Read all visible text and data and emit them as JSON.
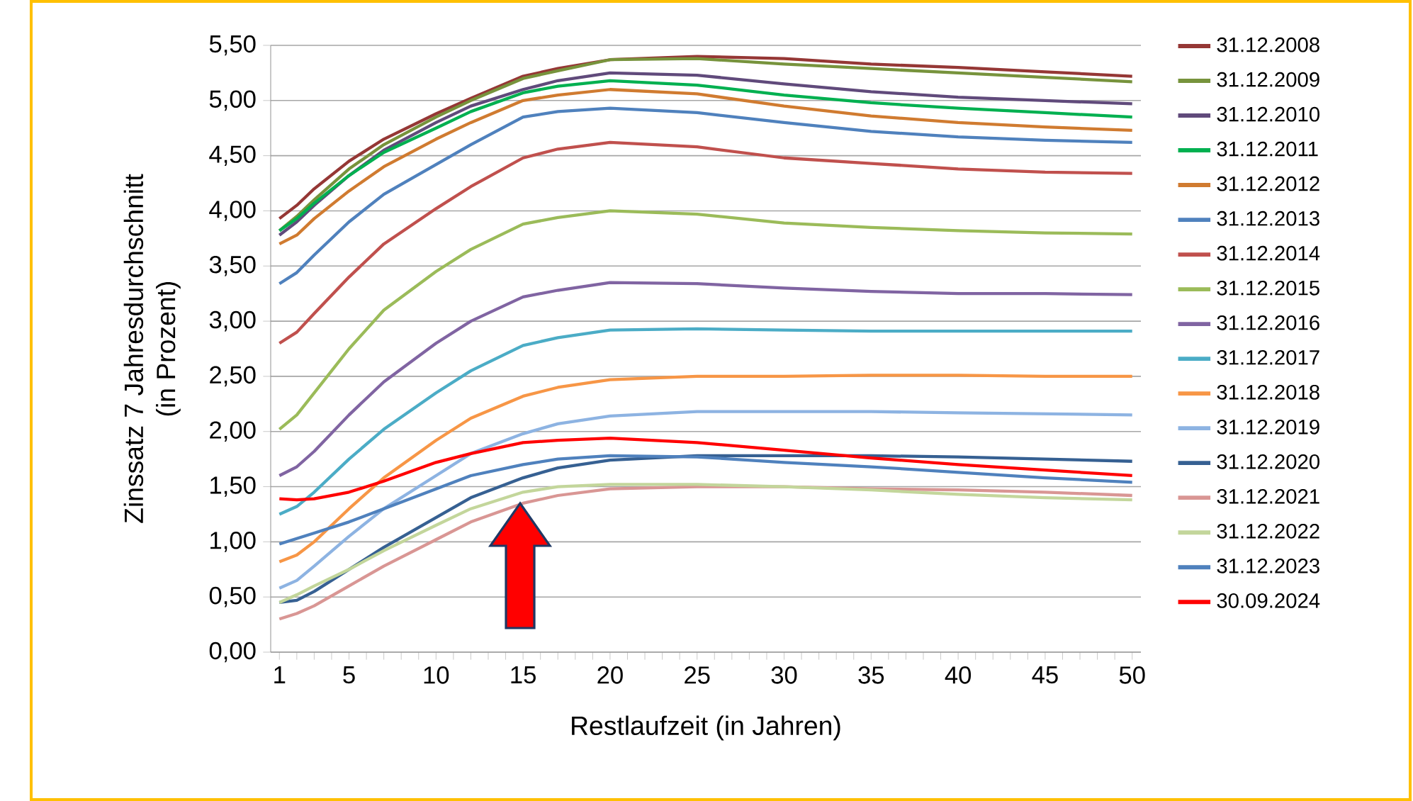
{
  "chart_data": {
    "type": "line",
    "ylabel": "Zinssatz 7 Jahresdurchschnitt\n(in Prozent)",
    "xlabel": "Restlaufzeit (in Jahren)",
    "x": [
      1,
      2,
      3,
      5,
      7,
      10,
      12,
      15,
      17,
      20,
      25,
      30,
      35,
      40,
      45,
      50
    ],
    "xlim": [
      0.5,
      50.5
    ],
    "xticks": [
      1,
      {
        "value": 2,
        "label": null
      },
      {
        "value": 3,
        "label": null
      },
      {
        "value": 4,
        "label": null
      },
      5,
      {
        "value": 6,
        "label": null
      },
      {
        "value": 7,
        "label": null
      },
      {
        "value": 8,
        "label": null
      },
      {
        "value": 9,
        "label": null
      },
      10,
      {
        "value": 11,
        "label": null
      },
      {
        "value": 12,
        "label": null
      },
      {
        "value": 13,
        "label": null
      },
      {
        "value": 14,
        "label": null
      },
      15,
      {
        "value": 16,
        "label": null
      },
      {
        "value": 17,
        "label": null
      },
      {
        "value": 18,
        "label": null
      },
      {
        "value": 19,
        "label": null
      },
      20,
      {
        "value": 21,
        "label": null
      },
      {
        "value": 22,
        "label": null
      },
      {
        "value": 23,
        "label": null
      },
      {
        "value": 24,
        "label": null
      },
      25,
      {
        "value": 26,
        "label": null
      },
      {
        "value": 27,
        "label": null
      },
      {
        "value": 28,
        "label": null
      },
      {
        "value": 29,
        "label": null
      },
      30,
      {
        "value": 31,
        "label": null
      },
      {
        "value": 32,
        "label": null
      },
      {
        "value": 33,
        "label": null
      },
      {
        "value": 34,
        "label": null
      },
      35,
      {
        "value": 36,
        "label": null
      },
      {
        "value": 37,
        "label": null
      },
      {
        "value": 38,
        "label": null
      },
      {
        "value": 39,
        "label": null
      },
      40,
      {
        "value": 41,
        "label": null
      },
      {
        "value": 42,
        "label": null
      },
      {
        "value": 43,
        "label": null
      },
      {
        "value": 44,
        "label": null
      },
      45,
      {
        "value": 46,
        "label": null
      },
      {
        "value": 47,
        "label": null
      },
      {
        "value": 48,
        "label": null
      },
      {
        "value": 49,
        "label": null
      },
      50
    ],
    "ylim": [
      0,
      5.5
    ],
    "yticks": [
      {
        "value": 0,
        "label": "0,00"
      },
      {
        "value": 0.5,
        "label": "0,50"
      },
      {
        "value": 1,
        "label": "1,00"
      },
      {
        "value": 1.5,
        "label": "1,50"
      },
      {
        "value": 2,
        "label": "2,00"
      },
      {
        "value": 2.5,
        "label": "2,50"
      },
      {
        "value": 3,
        "label": "3,00"
      },
      {
        "value": 3.5,
        "label": "3,50"
      },
      {
        "value": 4,
        "label": "4,00"
      },
      {
        "value": 4.5,
        "label": "4,50"
      },
      {
        "value": 5,
        "label": "5,00"
      },
      {
        "value": 5.5,
        "label": "5,50"
      }
    ],
    "grid": "y",
    "legend": "right",
    "marker": "none",
    "line_style": "solid",
    "series": [
      {
        "name": "31.12.2008",
        "color": "#953735",
        "values": [
          3.93,
          4.05,
          4.2,
          4.45,
          4.65,
          4.88,
          5.02,
          5.22,
          5.29,
          5.37,
          5.4,
          5.38,
          5.33,
          5.3,
          5.26,
          5.22
        ]
      },
      {
        "name": "31.12.2009",
        "color": "#77933c",
        "values": [
          3.82,
          3.95,
          4.1,
          4.38,
          4.6,
          4.85,
          5.0,
          5.2,
          5.27,
          5.37,
          5.38,
          5.33,
          5.29,
          5.25,
          5.21,
          5.17
        ]
      },
      {
        "name": "31.12.2010",
        "color": "#604a7b",
        "values": [
          3.78,
          3.9,
          4.05,
          4.32,
          4.55,
          4.8,
          4.95,
          5.1,
          5.18,
          5.25,
          5.23,
          5.15,
          5.08,
          5.03,
          5.0,
          4.97
        ]
      },
      {
        "name": "31.12.2011",
        "color": "#00b050",
        "values": [
          3.82,
          3.93,
          4.07,
          4.32,
          4.53,
          4.75,
          4.9,
          5.07,
          5.13,
          5.18,
          5.14,
          5.05,
          4.98,
          4.93,
          4.89,
          4.85
        ]
      },
      {
        "name": "31.12.2012",
        "color": "#d07b30",
        "values": [
          3.7,
          3.78,
          3.93,
          4.18,
          4.4,
          4.65,
          4.8,
          5.0,
          5.05,
          5.1,
          5.06,
          4.95,
          4.86,
          4.8,
          4.76,
          4.73
        ]
      },
      {
        "name": "31.12.2013",
        "color": "#4f81bd",
        "values": [
          3.34,
          3.44,
          3.6,
          3.9,
          4.15,
          4.42,
          4.6,
          4.85,
          4.9,
          4.93,
          4.89,
          4.8,
          4.72,
          4.67,
          4.64,
          4.62
        ]
      },
      {
        "name": "31.12.2014",
        "color": "#c0504d",
        "values": [
          2.8,
          2.9,
          3.07,
          3.4,
          3.7,
          4.02,
          4.22,
          4.48,
          4.56,
          4.62,
          4.58,
          4.48,
          4.43,
          4.38,
          4.35,
          4.34
        ]
      },
      {
        "name": "31.12.2015",
        "color": "#9bbb59",
        "values": [
          2.02,
          2.15,
          2.35,
          2.75,
          3.1,
          3.45,
          3.65,
          3.88,
          3.94,
          4.0,
          3.97,
          3.89,
          3.85,
          3.82,
          3.8,
          3.79
        ]
      },
      {
        "name": "31.12.2016",
        "color": "#8064a2",
        "values": [
          1.6,
          1.68,
          1.82,
          2.15,
          2.45,
          2.8,
          3.0,
          3.22,
          3.28,
          3.35,
          3.34,
          3.3,
          3.27,
          3.25,
          3.25,
          3.24
        ]
      },
      {
        "name": "31.12.2017",
        "color": "#4bacc6",
        "values": [
          1.25,
          1.32,
          1.45,
          1.75,
          2.02,
          2.35,
          2.55,
          2.78,
          2.85,
          2.92,
          2.93,
          2.92,
          2.91,
          2.91,
          2.91,
          2.91
        ]
      },
      {
        "name": "31.12.2018",
        "color": "#f79646",
        "values": [
          0.82,
          0.88,
          1.0,
          1.3,
          1.58,
          1.92,
          2.12,
          2.32,
          2.4,
          2.47,
          2.5,
          2.5,
          2.51,
          2.51,
          2.5,
          2.5
        ]
      },
      {
        "name": "31.12.2019",
        "color": "#8db3e2",
        "values": [
          0.58,
          0.65,
          0.78,
          1.05,
          1.3,
          1.6,
          1.8,
          1.98,
          2.07,
          2.14,
          2.18,
          2.18,
          2.18,
          2.17,
          2.16,
          2.15
        ]
      },
      {
        "name": "31.12.2020",
        "color": "#366092",
        "values": [
          0.45,
          0.47,
          0.55,
          0.75,
          0.95,
          1.22,
          1.4,
          1.58,
          1.67,
          1.74,
          1.78,
          1.78,
          1.78,
          1.77,
          1.75,
          1.73
        ]
      },
      {
        "name": "31.12.2021",
        "color": "#d99694",
        "values": [
          0.3,
          0.35,
          0.42,
          0.6,
          0.78,
          1.02,
          1.18,
          1.35,
          1.42,
          1.48,
          1.5,
          1.5,
          1.48,
          1.47,
          1.45,
          1.42
        ]
      },
      {
        "name": "31.12.2022",
        "color": "#c3d69b",
        "values": [
          0.45,
          0.52,
          0.6,
          0.75,
          0.92,
          1.15,
          1.3,
          1.45,
          1.5,
          1.52,
          1.52,
          1.5,
          1.47,
          1.43,
          1.4,
          1.38
        ]
      },
      {
        "name": "31.12.2023",
        "color": "#4f81bd",
        "values": [
          0.98,
          1.03,
          1.08,
          1.18,
          1.3,
          1.48,
          1.6,
          1.7,
          1.75,
          1.78,
          1.77,
          1.72,
          1.68,
          1.63,
          1.58,
          1.54
        ]
      },
      {
        "name": "30.09.2024",
        "color": "#ff0000",
        "values": [
          1.39,
          1.38,
          1.39,
          1.45,
          1.55,
          1.72,
          1.8,
          1.9,
          1.92,
          1.94,
          1.9,
          1.83,
          1.76,
          1.7,
          1.65,
          1.6
        ]
      }
    ]
  }
}
